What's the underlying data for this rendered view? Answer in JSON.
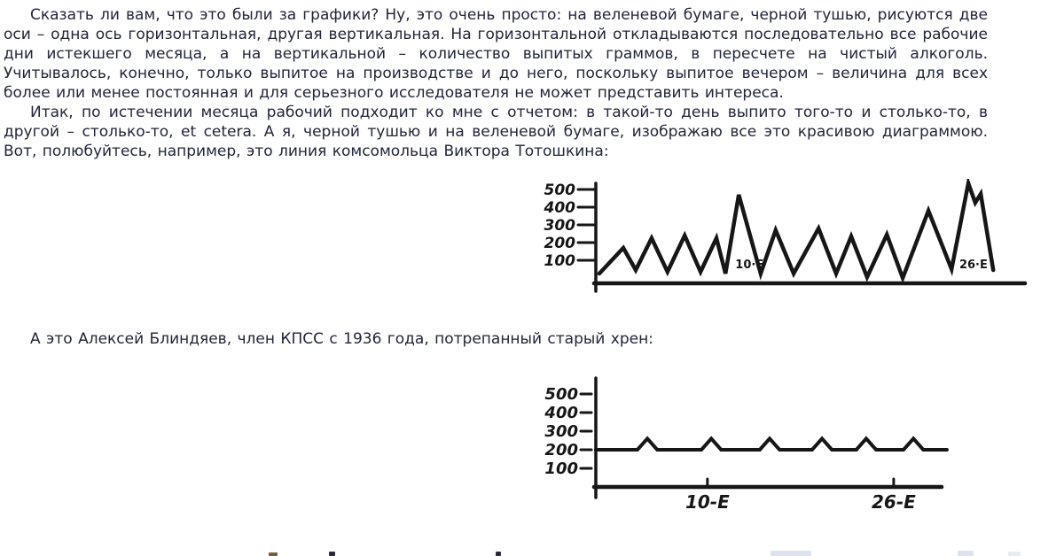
{
  "page": {
    "background": "#ffffff",
    "text_color": "#23253a",
    "ink_color": "#161616"
  },
  "paragraphs": {
    "intro": "Сказать ли вам, что это были за графики? Ну, это очень просто: на веленевой бумаге, черной тушью, рисуются две оси – одна ось горизонтальная, другая вертикальная. На горизонтальной откладываются последовательно все рабочие дни истекшего месяца, а на вертикальной – количество выпитых граммов, в пересчете на чистый алкоголь. Учитывалось, конечно, только выпитое на производстве и до него, поскольку выпитое вечером – величина для всех более или менее постоянная и для серьезного исследователя не может представить интереса.",
    "totoshkin": "Итак, по истечении месяца рабочий подходит ко мне с отчетом: в такой-то день выпито того-то и столько-то, в другой – столько-то, et cetera. А я, черной тушью и на веленевой бумаге, изображаю все это красивою диаграммою. Вот, полюбуйтесь, например, это линия комсомольца Виктора Тотошкина:",
    "blindyaev": "А это Алексей Блиндяев, член КПСС с 1936 года, потрепанный старый хрен:"
  },
  "chart_data": [
    {
      "type": "line",
      "owner": "Виктор Тотошкин",
      "style": "hand-drawn ink zigzag",
      "ylim": [
        0,
        550
      ],
      "y_ticks": [
        500,
        400,
        300,
        200,
        100
      ],
      "points": [
        [
          0.8,
          25
        ],
        [
          6.4,
          170
        ],
        [
          9.3,
          45
        ],
        [
          13.0,
          225
        ],
        [
          16.7,
          35
        ],
        [
          20.7,
          240
        ],
        [
          24.4,
          35
        ],
        [
          28.1,
          225
        ],
        [
          30.2,
          25
        ],
        [
          33.3,
          470
        ],
        [
          38.4,
          25
        ],
        [
          41.9,
          270
        ],
        [
          46.1,
          25
        ],
        [
          51.9,
          280
        ],
        [
          56.0,
          25
        ],
        [
          59.5,
          235
        ],
        [
          63.2,
          5
        ],
        [
          67.8,
          245
        ],
        [
          71.5,
          0
        ],
        [
          77.5,
          380
        ],
        [
          82.9,
          50
        ],
        [
          86.8,
          535
        ],
        [
          88.4,
          425
        ],
        [
          89.7,
          475
        ],
        [
          92.6,
          45
        ]
      ],
      "annotations": [
        {
          "label": "10·Е",
          "x": 32.5,
          "value": 80
        },
        {
          "label": "26·Е",
          "x": 84.7,
          "value": 80
        }
      ]
    },
    {
      "type": "line",
      "owner": "Алексей Блиндяев",
      "style": "hand-drawn ink flat line with small bumps",
      "ylim": [
        0,
        550
      ],
      "y_ticks": [
        500,
        400,
        300,
        200,
        100
      ],
      "points": [
        [
          0,
          200
        ],
        [
          9.7,
          200
        ],
        [
          12.0,
          260
        ],
        [
          14.3,
          200
        ],
        [
          24.6,
          200
        ],
        [
          26.9,
          260
        ],
        [
          29.2,
          200
        ],
        [
          38.2,
          200
        ],
        [
          40.5,
          260
        ],
        [
          42.8,
          200
        ],
        [
          50.4,
          200
        ],
        [
          52.7,
          260
        ],
        [
          55.0,
          200
        ],
        [
          60.7,
          200
        ],
        [
          63.0,
          260
        ],
        [
          65.3,
          200
        ],
        [
          71.7,
          200
        ],
        [
          74.0,
          260
        ],
        [
          76.3,
          200
        ],
        [
          81.8,
          200
        ]
      ],
      "x_ticks": [
        {
          "label": "10-Е",
          "x": 26.0
        },
        {
          "label": "26-Е",
          "x": 69.4
        }
      ]
    }
  ],
  "clipped_line": {
    "fragments": [
      {
        "x": 303,
        "w": 10,
        "h": 4,
        "color": "#7a5c3a"
      },
      {
        "x": 371,
        "w": 7,
        "h": 5,
        "color": "#2a2a38"
      },
      {
        "x": 559,
        "w": 6,
        "h": 5,
        "color": "#2a2a38"
      },
      {
        "x": 869,
        "w": 46,
        "h": 6,
        "color": "#dde3ee"
      },
      {
        "x": 1080,
        "w": 18,
        "h": 6,
        "color": "#dde3ee"
      },
      {
        "x": 1137,
        "w": 14,
        "h": 5,
        "color": "#e7ebf2"
      }
    ]
  }
}
